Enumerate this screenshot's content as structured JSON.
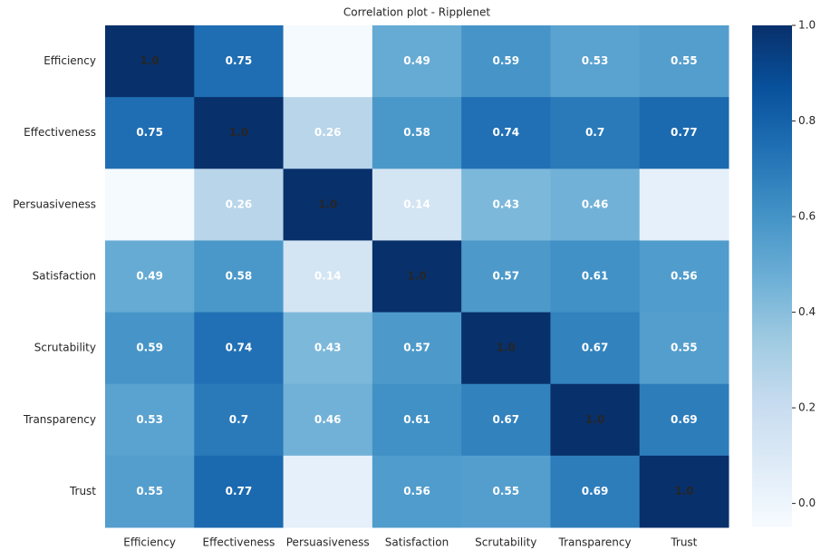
{
  "chart_data": {
    "type": "heatmap",
    "title": "Correlation plot - Ripplenet",
    "colormap": "Blues",
    "categories": [
      "Efficiency",
      "Effectiveness",
      "Persuasiveness",
      "Satisfaction",
      "Scrutability",
      "Transparency",
      "Trust"
    ],
    "values": [
      [
        1.0,
        0.75,
        -0.04,
        0.49,
        0.59,
        0.53,
        0.55
      ],
      [
        0.75,
        1.0,
        0.26,
        0.58,
        0.74,
        0.7,
        0.77
      ],
      [
        -0.04,
        0.26,
        1.0,
        0.14,
        0.43,
        0.46,
        0.04
      ],
      [
        0.49,
        0.58,
        0.14,
        1.0,
        0.57,
        0.61,
        0.56
      ],
      [
        0.59,
        0.74,
        0.43,
        0.57,
        1.0,
        0.67,
        0.55
      ],
      [
        0.53,
        0.7,
        0.46,
        0.61,
        0.67,
        1.0,
        0.69
      ],
      [
        0.55,
        0.77,
        0.04,
        0.56,
        0.55,
        0.69,
        1.0
      ]
    ],
    "value_labels": [
      [
        "1.0",
        "0.75",
        null,
        "0.49",
        "0.59",
        "0.53",
        "0.55"
      ],
      [
        "0.75",
        "1.0",
        "0.26",
        "0.58",
        "0.74",
        "0.7",
        "0.77"
      ],
      [
        null,
        "0.26",
        "1.0",
        "0.14",
        "0.43",
        "0.46",
        null
      ],
      [
        "0.49",
        "0.58",
        "0.14",
        "1.0",
        "0.57",
        "0.61",
        "0.56"
      ],
      [
        "0.59",
        "0.74",
        "0.43",
        "0.57",
        "1.0",
        "0.67",
        "0.55"
      ],
      [
        "0.53",
        "0.7",
        "0.46",
        "0.61",
        "0.67",
        "1.0",
        "0.69"
      ],
      [
        "0.55",
        "0.77",
        null,
        "0.56",
        "0.55",
        "0.69",
        "1.0"
      ]
    ],
    "ylim": [
      -0.05,
      1.0
    ],
    "yticks": [
      {
        "value": 0,
        "label": "0.0"
      },
      0.2,
      0.4,
      0.6,
      0.8,
      {
        "value": 1,
        "label": "1.0"
      }
    ]
  }
}
